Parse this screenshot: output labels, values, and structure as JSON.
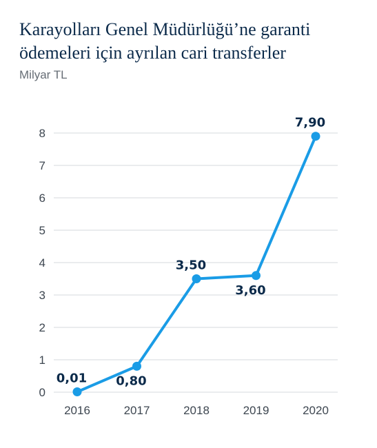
{
  "chart_data": {
    "type": "line",
    "title": "Karayolları Genel Müdürlüğü’ne garanti ödemeleri için ayrılan cari transferler",
    "subtitle": "Milyar TL",
    "xlabel": "",
    "ylabel": "",
    "categories": [
      "2016",
      "2017",
      "2018",
      "2019",
      "2020"
    ],
    "series": [
      {
        "values": [
          0.01,
          0.8,
          3.5,
          3.6,
          7.9
        ],
        "labels": [
          "0,01",
          "0,80",
          "3,50",
          "3,60",
          "7,90"
        ]
      }
    ],
    "ylim": [
      0,
      8
    ],
    "yticks": [
      "0",
      "1",
      "2",
      "3",
      "4",
      "5",
      "6",
      "7",
      "8"
    ],
    "grid": true,
    "legend": "none",
    "colors": {
      "line": "#1a9ce6",
      "label": "#0b2a4a",
      "grid": "#d5d9dd"
    }
  }
}
